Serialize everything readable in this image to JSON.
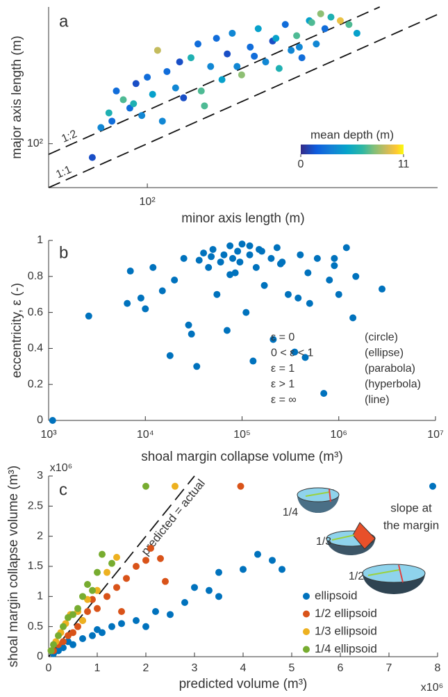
{
  "chart_data": [
    {
      "type": "scatter",
      "label": "a",
      "xlabel": "minor axis length (m)",
      "ylabel": "major axis length (m)",
      "xscale": "log",
      "yscale": "log",
      "xlim": [
        40,
        1480
      ],
      "ylim": [
        40,
        1730
      ],
      "xticks": [
        {
          "value": 100,
          "label": "10²"
        }
      ],
      "yticks": [
        {
          "value": 100,
          "label": "10²"
        }
      ],
      "reference_lines": [
        {
          "label": "1:1",
          "ratio": 1
        },
        {
          "label": "1:2",
          "ratio": 2
        }
      ],
      "colorbar": {
        "label": "mean depth (m)",
        "lim": [
          0,
          11
        ],
        "ticks": [
          0,
          11
        ],
        "colormap": "parula"
      },
      "series": [
        {
          "x": [
            60,
            65,
            70,
            75,
            80,
            85,
            90,
            95,
            100,
            105,
            110,
            120,
            130,
            140,
            150,
            160,
            170,
            180,
            190,
            200,
            210,
            220,
            240,
            260,
            280,
            300,
            320,
            340,
            360,
            380,
            400,
            420,
            450,
            480,
            500,
            520,
            550,
            600,
            650,
            700,
            72,
            88,
            115,
            135,
            165,
            230,
            270,
            330,
            410,
            460
          ],
          "y": [
            75,
            140,
            190,
            300,
            250,
            210,
            350,
            180,
            400,
            280,
            700,
            450,
            320,
            260,
            600,
            800,
            220,
            500,
            900,
            380,
            650,
            1000,
            420,
            750,
            1100,
            550,
            850,
            480,
            1200,
            700,
            950,
            600,
            1300,
            800,
            1500,
            1100,
            1400,
            1300,
            1200,
            1000,
            160,
            230,
            160,
            550,
            300,
            500,
            620,
            900,
            750,
            1250
          ],
          "depth": [
            1,
            3,
            5,
            2,
            6,
            2,
            1,
            3,
            2,
            4,
            8,
            2,
            3,
            1,
            5,
            2,
            6,
            3,
            2,
            4,
            1,
            3,
            7,
            2,
            4,
            3,
            1,
            5,
            2,
            3,
            6,
            2,
            4,
            3,
            7,
            2,
            5,
            9,
            6,
            4,
            2,
            5,
            3,
            1,
            6,
            3,
            2,
            4,
            3,
            6
          ]
        }
      ]
    },
    {
      "type": "scatter",
      "label": "b",
      "xlabel": "shoal margin collapse volume (m³)",
      "ylabel": "eccentricity, ε (-)",
      "xscale": "log",
      "yscale": "linear",
      "xlim": [
        1000,
        10000000
      ],
      "ylim": [
        0,
        1
      ],
      "xticks": [
        {
          "value": 1000,
          "label": "10³"
        },
        {
          "value": 10000,
          "label": "10⁴"
        },
        {
          "value": 100000,
          "label": "10⁵"
        },
        {
          "value": 1000000,
          "label": "10⁶"
        },
        {
          "value": 10000000,
          "label": "10⁷"
        }
      ],
      "yticks": [
        0,
        0.2,
        0.4,
        0.6,
        0.8,
        1
      ],
      "cases": [
        [
          "ε = 0",
          "(circle)"
        ],
        [
          "0 < ε < 1",
          "(ellipse)"
        ],
        [
          "ε = 1",
          "(parabola)"
        ],
        [
          "ε > 1",
          "(hyperbola)"
        ],
        [
          "ε = ∞",
          "(line)"
        ]
      ],
      "series": [
        {
          "color": "#0072bd",
          "x": [
            1100,
            2600,
            6500,
            7000,
            9000,
            10000,
            12000,
            15000,
            18000,
            20000,
            25000,
            30000,
            34000,
            40000,
            45000,
            50000,
            55000,
            60000,
            65000,
            70000,
            75000,
            80000,
            85000,
            90000,
            95000,
            100000,
            110000,
            120000,
            130000,
            140000,
            150000,
            170000,
            200000,
            210000,
            230000,
            260000,
            300000,
            350000,
            400000,
            450000,
            480000,
            500000,
            600000,
            700000,
            800000,
            900000,
            1000000,
            1200000,
            1400000,
            1500000,
            2800000,
            28000,
            36000,
            48000,
            75000,
            120000,
            160000,
            250000,
            380000,
            900000
          ],
          "y": [
            0,
            0.58,
            0.65,
            0.83,
            0.68,
            0.62,
            0.85,
            0.72,
            0.36,
            0.78,
            0.9,
            0.48,
            0.3,
            0.93,
            0.85,
            0.95,
            0.7,
            0.88,
            0.92,
            0.5,
            0.97,
            0.9,
            0.82,
            0.94,
            0.88,
            0.98,
            0.6,
            0.92,
            0.33,
            0.85,
            0.95,
            0.75,
            0.9,
            0.45,
            0.96,
            0.88,
            0.7,
            0.38,
            0.92,
            0.35,
            0.82,
            0.65,
            0.9,
            0.15,
            0.78,
            0.86,
            0.7,
            0.96,
            0.57,
            0.8,
            0.73,
            0.53,
            0.89,
            0.91,
            0.81,
            0.97,
            0.94,
            0.87,
            0.68,
            0.9
          ]
        }
      ]
    },
    {
      "type": "scatter",
      "label": "c",
      "xlabel": "predicted volume (m³)",
      "ylabel": "shoal margin collapse volume (m³)",
      "xscale": "linear",
      "yscale": "linear",
      "xlim": [
        0,
        8
      ],
      "ylim": [
        0,
        3
      ],
      "x_exponent": "x10⁶",
      "y_exponent": "x10⁶",
      "xticks": [
        0,
        1,
        2,
        3,
        4,
        5,
        6,
        7,
        8
      ],
      "yticks": [
        0,
        0.5,
        1,
        1.5,
        2,
        2.5,
        3
      ],
      "annotation": "predicted = actual",
      "inset": {
        "labels": [
          "1/4",
          "1/3",
          "1/2"
        ],
        "note": [
          "slope at",
          "the margin"
        ]
      },
      "series": [
        {
          "name": "ellipsoid",
          "color": "#0072bd",
          "x": [
            0.1,
            0.2,
            0.3,
            0.5,
            0.7,
            0.9,
            1.1,
            1.3,
            1.5,
            1.8,
            2.0,
            2.2,
            2.5,
            2.8,
            3.0,
            3.3,
            3.5,
            3.5,
            4.0,
            4.3,
            4.6,
            4.8,
            7.9,
            1.0,
            0.4
          ],
          "y": [
            0.05,
            0.1,
            0.15,
            0.2,
            0.3,
            0.35,
            0.4,
            0.5,
            0.55,
            0.6,
            0.5,
            0.75,
            0.7,
            0.9,
            1.15,
            1.1,
            1.4,
            1.0,
            1.45,
            1.7,
            1.6,
            1.45,
            2.83,
            0.45,
            0.25
          ]
        },
        {
          "name": "1/2 ellipsoid",
          "color": "#d95319",
          "x": [
            0.1,
            0.2,
            0.3,
            0.4,
            0.5,
            0.6,
            0.7,
            0.8,
            1.0,
            1.2,
            1.4,
            1.6,
            1.8,
            2.0,
            2.1,
            2.3,
            2.4,
            3.95,
            0.9,
            1.5
          ],
          "y": [
            0.1,
            0.2,
            0.25,
            0.35,
            0.4,
            0.5,
            0.6,
            0.75,
            0.8,
            1.0,
            1.15,
            1.3,
            1.5,
            1.6,
            1.8,
            1.63,
            1.25,
            2.83,
            0.95,
            0.75
          ]
        },
        {
          "name": "1/3 ellipsoid",
          "color": "#edb120",
          "x": [
            0.05,
            0.15,
            0.25,
            0.35,
            0.45,
            0.6,
            0.8,
            1.0,
            1.2,
            1.4,
            2.6,
            0.7
          ],
          "y": [
            0.1,
            0.25,
            0.4,
            0.55,
            0.7,
            0.75,
            0.95,
            1.1,
            1.4,
            1.65,
            2.83,
            0.6
          ]
        },
        {
          "name": "1/4 ellipsoid",
          "color": "#77ac30",
          "x": [
            0.05,
            0.1,
            0.2,
            0.3,
            0.4,
            0.5,
            0.6,
            0.7,
            0.8,
            1.0,
            1.1,
            1.3,
            2.0,
            0.9
          ],
          "y": [
            0.1,
            0.2,
            0.35,
            0.5,
            0.65,
            0.7,
            0.8,
            1.0,
            1.2,
            1.4,
            1.7,
            1.55,
            2.83,
            1.1
          ]
        }
      ]
    }
  ]
}
